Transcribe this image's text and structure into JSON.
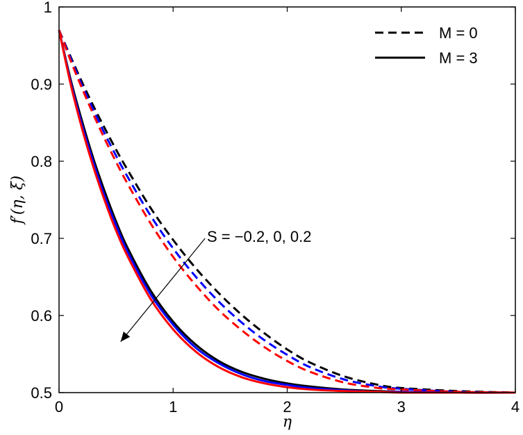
{
  "chart_data": {
    "type": "line",
    "xlabel": "η",
    "ylabel": "f′(η, ξ)",
    "xlim": [
      0,
      4
    ],
    "ylim": [
      0.5,
      1
    ],
    "xticks": [
      "0",
      "1",
      "2",
      "3",
      "4"
    ],
    "yticks": [
      "0.5",
      "0.6",
      "0.7",
      "0.8",
      "0.9",
      "1"
    ],
    "grid": false,
    "legend": {
      "placement": "top-right",
      "entries": [
        {
          "label": "M = 0",
          "style": "dashed"
        },
        {
          "label": "M = 3",
          "style": "solid"
        }
      ]
    },
    "annotation": {
      "text": "S = −0.2, 0, 0.2",
      "arrow_from": [
        1.28,
        0.7
      ],
      "arrow_to": [
        0.54,
        0.566
      ]
    },
    "colors": {
      "S=-0.2": "#000000",
      "S=0": "#0000ff",
      "S=0.2": "#ff0000"
    },
    "x": [
      0,
      0.1,
      0.2,
      0.3,
      0.4,
      0.5,
      0.6,
      0.8,
      1.0,
      1.2,
      1.4,
      1.6,
      1.8,
      2.0,
      2.2,
      2.5,
      2.8,
      3.0,
      3.5,
      4.0
    ],
    "series": [
      {
        "M": 0,
        "S": -0.2,
        "color": "#000000",
        "style": "dashed",
        "values": [
          0.97,
          0.936,
          0.903,
          0.872,
          0.843,
          0.815,
          0.789,
          0.74,
          0.698,
          0.661,
          0.629,
          0.601,
          0.577,
          0.556,
          0.539,
          0.521,
          0.51,
          0.506,
          0.502,
          0.5
        ]
      },
      {
        "M": 0,
        "S": 0,
        "color": "#0000ff",
        "style": "dashed",
        "values": [
          0.97,
          0.934,
          0.899,
          0.867,
          0.836,
          0.807,
          0.78,
          0.73,
          0.687,
          0.65,
          0.618,
          0.591,
          0.568,
          0.549,
          0.533,
          0.517,
          0.508,
          0.505,
          0.501,
          0.5
        ]
      },
      {
        "M": 0,
        "S": 0.2,
        "color": "#ff0000",
        "style": "dashed",
        "values": [
          0.97,
          0.931,
          0.895,
          0.861,
          0.829,
          0.799,
          0.771,
          0.72,
          0.676,
          0.639,
          0.607,
          0.581,
          0.559,
          0.541,
          0.527,
          0.513,
          0.506,
          0.504,
          0.501,
          0.5
        ]
      },
      {
        "M": 3,
        "S": -0.2,
        "color": "#000000",
        "style": "solid",
        "values": [
          0.97,
          0.907,
          0.853,
          0.804,
          0.761,
          0.722,
          0.688,
          0.633,
          0.592,
          0.562,
          0.541,
          0.527,
          0.518,
          0.512,
          0.508,
          0.504,
          0.502,
          0.501,
          0.5,
          0.5
        ]
      },
      {
        "M": 3,
        "S": 0,
        "color": "#0000ff",
        "style": "solid",
        "values": [
          0.97,
          0.904,
          0.848,
          0.799,
          0.755,
          0.717,
          0.683,
          0.628,
          0.588,
          0.558,
          0.538,
          0.524,
          0.515,
          0.51,
          0.506,
          0.503,
          0.501,
          0.501,
          0.5,
          0.5
        ]
      },
      {
        "M": 3,
        "S": 0.2,
        "color": "#ff0000",
        "style": "solid",
        "values": [
          0.97,
          0.901,
          0.843,
          0.793,
          0.749,
          0.71,
          0.677,
          0.622,
          0.582,
          0.553,
          0.533,
          0.52,
          0.512,
          0.507,
          0.504,
          0.502,
          0.501,
          0.5,
          0.5,
          0.5
        ]
      }
    ]
  }
}
